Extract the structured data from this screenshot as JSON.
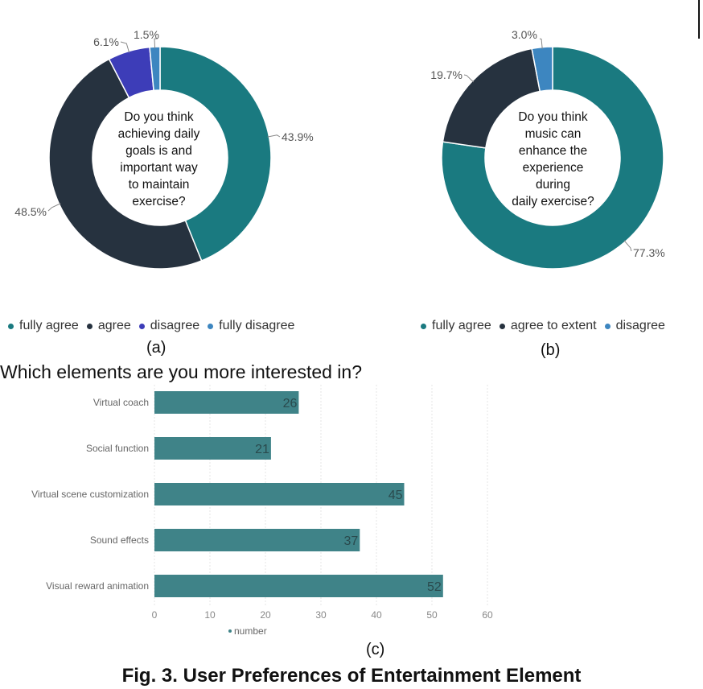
{
  "colors": {
    "teal": "#1a7a80",
    "navy": "#26323f",
    "indigo": "#3d3db8",
    "lightblue": "#3d86c0",
    "bar": "#3f8388"
  },
  "chart_data": [
    {
      "type": "pie",
      "donut": true,
      "center_text": [
        "Do you think",
        "achieving daily",
        "goals is and",
        "important way",
        "to maintain",
        "exercise?"
      ],
      "labels": [
        "fully agree",
        "agree",
        "disagree",
        "fully disagree"
      ],
      "values": [
        43.9,
        48.5,
        6.1,
        1.5
      ],
      "value_labels": [
        "43.9%",
        "48.5%",
        "6.1%",
        "1.5%"
      ],
      "colors": [
        "#1a7a80",
        "#26323f",
        "#3d3db8",
        "#3d86c0"
      ],
      "legend_position": "bottom",
      "caption": "(a)"
    },
    {
      "type": "pie",
      "donut": true,
      "center_text": [
        "Do you think",
        "music can",
        "enhance the",
        "experience",
        "during",
        "daily exercise?"
      ],
      "labels": [
        "fully agree",
        "agree to extent",
        "disagree"
      ],
      "values": [
        77.3,
        19.7,
        3.0
      ],
      "value_labels": [
        "77.3%",
        "19.7%",
        "3.0%"
      ],
      "colors": [
        "#1a7a80",
        "#26323f",
        "#3d86c0"
      ],
      "legend_position": "bottom",
      "caption": "(b)"
    },
    {
      "type": "bar",
      "orientation": "horizontal",
      "title": "Which elements are you more interested in?",
      "categories": [
        "Virtual coach",
        "Social function",
        "Virtual scene customization",
        "Sound effects",
        "Visual reward animation"
      ],
      "series": [
        {
          "name": "number",
          "values": [
            26,
            21,
            45,
            37,
            52
          ]
        }
      ],
      "xlim": [
        0,
        60
      ],
      "xticks": [
        "0",
        "10",
        "20",
        "30",
        "40",
        "50",
        "60"
      ],
      "grid": true,
      "legend_position": "bottom",
      "caption": "(c)"
    }
  ],
  "figure_caption": "Fig. 3. User Preferences of Entertainment Element"
}
